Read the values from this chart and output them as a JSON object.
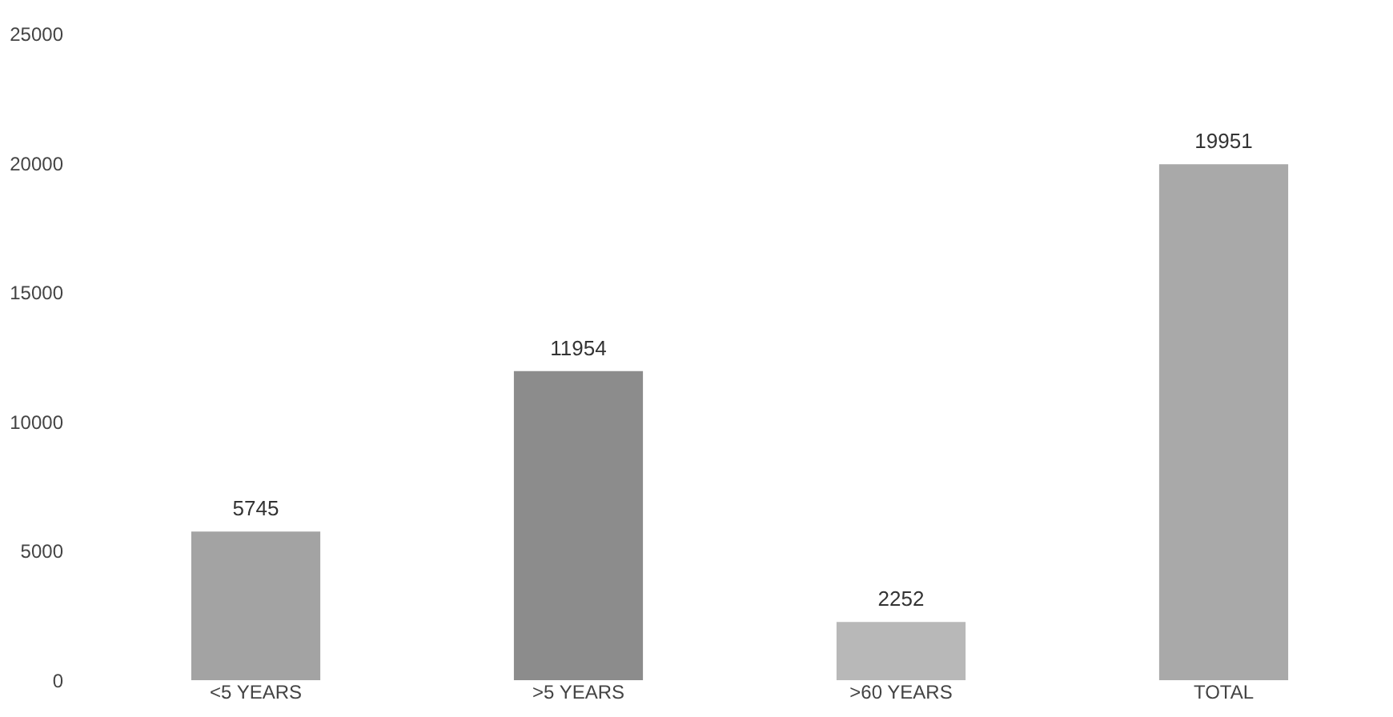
{
  "chart_data": {
    "type": "bar",
    "categories": [
      "<5 YEARS",
      ">5 YEARS",
      ">60 YEARS",
      "TOTAL"
    ],
    "values": [
      5745,
      11954,
      2252,
      19951
    ],
    "colors": [
      "#a3a3a3",
      "#8c8c8c",
      "#b8b8b8",
      "#a9a9a9"
    ],
    "ylim": [
      0,
      25000
    ],
    "yticks": [
      0,
      5000,
      10000,
      15000,
      20000,
      25000
    ],
    "grid": false,
    "data_labels": true
  }
}
